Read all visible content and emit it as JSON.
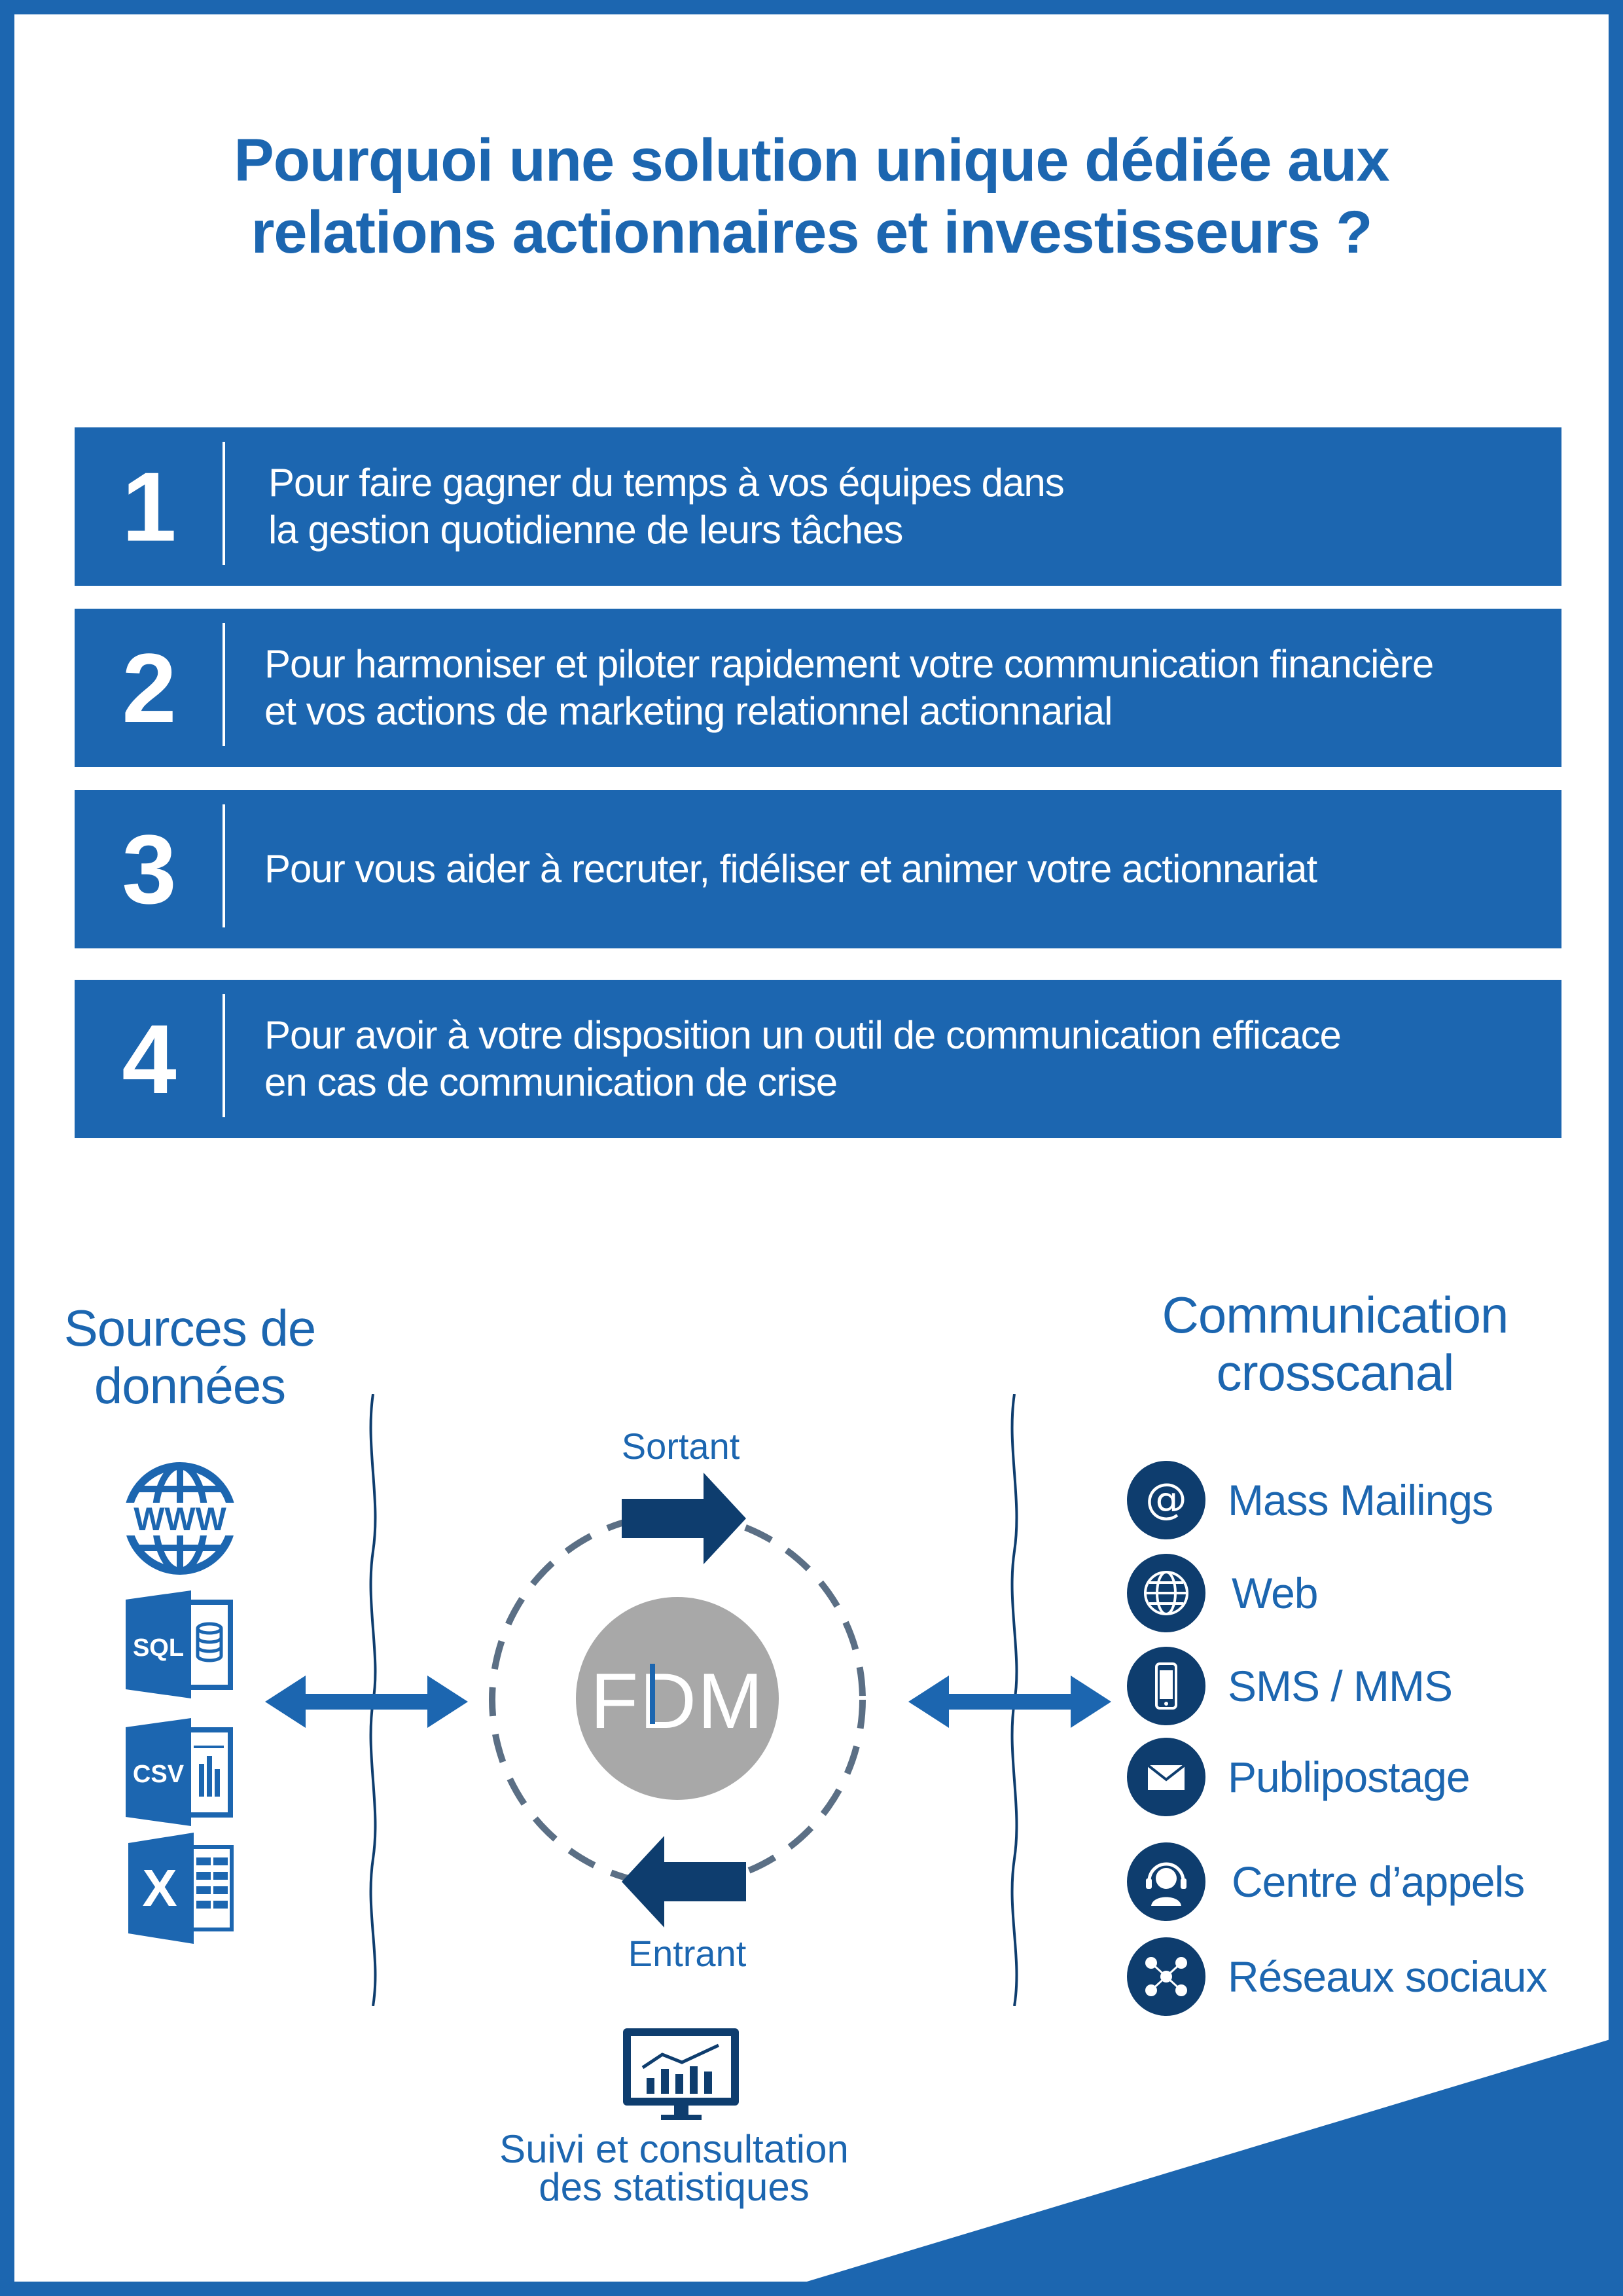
{
  "title": {
    "line1": "Pourquoi une solution unique dédiée aux",
    "line2": "relations actionnaires et investisseurs ?"
  },
  "reasons": [
    {
      "number": "1",
      "line1": "Pour faire gagner du temps à vos équipes dans",
      "line2": "la gestion quotidienne de leurs tâches"
    },
    {
      "number": "2",
      "line1": "Pour harmoniser et piloter rapidement votre communication financière",
      "line2": "et vos actions de marketing relationnel actionnarial"
    },
    {
      "number": "3",
      "line1": "Pour vous aider à recruter, fidéliser et animer votre actionnariat",
      "line2": ""
    },
    {
      "number": "4",
      "line1": "Pour avoir à votre disposition un outil de communication efficace",
      "line2": "en cas de communication de crise"
    }
  ],
  "sources": {
    "heading_line1": "Sources de",
    "heading_line2": "données",
    "icons": [
      {
        "name": "www-globe-icon",
        "label": "WWW"
      },
      {
        "name": "sql-database-icon",
        "label": "SQL"
      },
      {
        "name": "csv-file-icon",
        "label": "CSV"
      },
      {
        "name": "excel-file-icon",
        "label": "X"
      }
    ]
  },
  "flow": {
    "outgoing_label": "Sortant",
    "incoming_label": "Entrant",
    "center_logo": "FDM"
  },
  "communication": {
    "heading_line1": "Communication",
    "heading_line2": "crosscanal",
    "channels": [
      {
        "label": "Mass Mailings",
        "icon": "at-sign-icon"
      },
      {
        "label": "Web",
        "icon": "globe-icon"
      },
      {
        "label": "SMS / MMS",
        "icon": "smartphone-icon"
      },
      {
        "label": "Publipostage",
        "icon": "envelope-icon"
      },
      {
        "label": "Centre d’appels",
        "icon": "headset-operator-icon"
      },
      {
        "label": "Réseaux sociaux",
        "icon": "social-network-icon"
      }
    ]
  },
  "stats": {
    "line1": "Suivi et consultation",
    "line2": "des statistiques",
    "icon": "monitor-chart-icon"
  },
  "colors": {
    "primary_blue": "#1c66b0",
    "dark_navy": "#0e3d6e",
    "logo_grey": "#a8a8a8"
  }
}
